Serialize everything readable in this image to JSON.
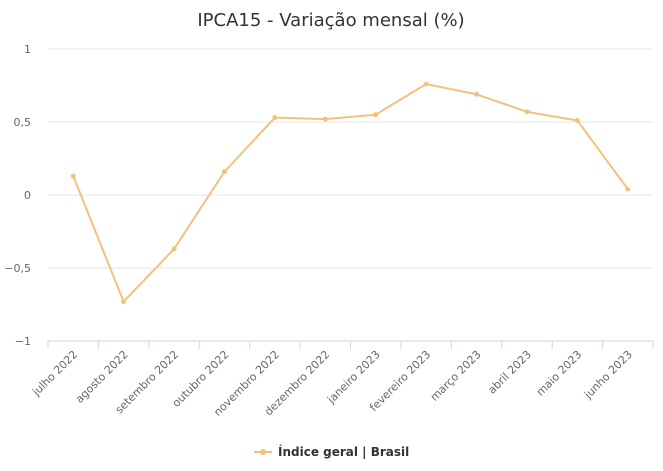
{
  "chart_data": {
    "type": "line",
    "title": "IPCA15 - Variação mensal (%)",
    "categories": [
      "julho 2022",
      "agosto 2022",
      "setembro 2022",
      "outubro 2022",
      "novembro 2022",
      "dezembro 2022",
      "janeiro 2023",
      "fevereiro 2023",
      "março 2023",
      "abril 2023",
      "maio 2023",
      "junho 2023"
    ],
    "series": [
      {
        "name": "Índice geral | Brasil",
        "color": "#f2c27c",
        "values": [
          0.13,
          -0.73,
          -0.37,
          0.16,
          0.53,
          0.52,
          0.55,
          0.76,
          0.69,
          0.57,
          0.51,
          0.04
        ]
      }
    ],
    "ylim": [
      -1,
      1
    ],
    "yticks": [
      1,
      0.5,
      0,
      -0.5,
      -1
    ],
    "ytick_labels": [
      "1",
      "0,5",
      "0",
      "−0,5",
      "−1"
    ],
    "grid": true,
    "legend_position": "bottom-center"
  }
}
